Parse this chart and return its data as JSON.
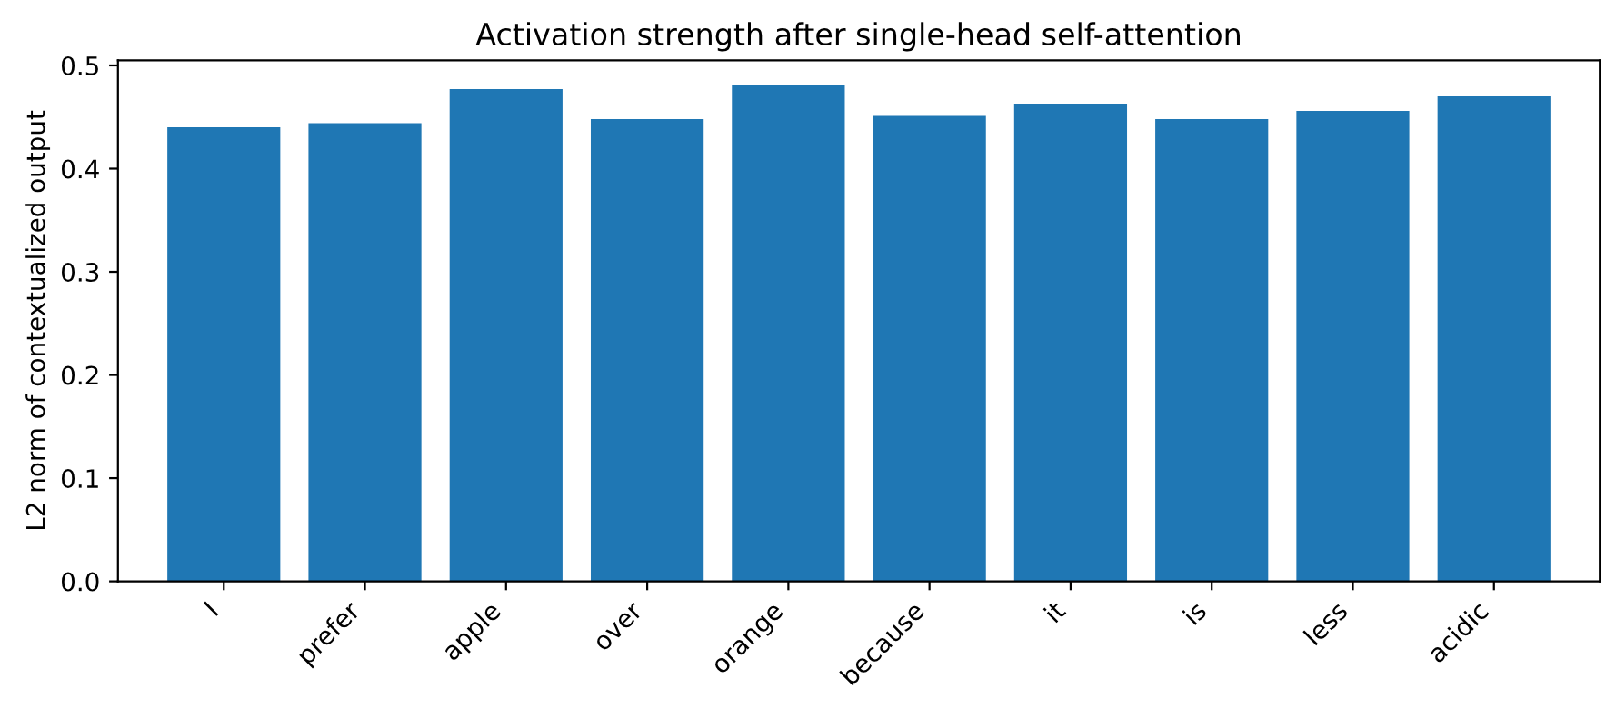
{
  "chart_data": {
    "type": "bar",
    "title": "Activation strength after single-head self-attention",
    "ylabel": "L2 norm of contextualized output",
    "categories": [
      "I",
      "prefer",
      "apple",
      "over",
      "orange",
      "because",
      "it",
      "is",
      "less",
      "acidic"
    ],
    "values": [
      0.44,
      0.444,
      0.477,
      0.448,
      0.481,
      0.451,
      0.463,
      0.448,
      0.456,
      0.47
    ],
    "color": "#1f77b4",
    "ylim": [
      0,
      0.505
    ],
    "yticks": [
      {
        "value": 0,
        "label": "0.0"
      },
      0.1,
      0.2,
      0.3,
      0.4,
      0.5
    ],
    "grid": false
  }
}
